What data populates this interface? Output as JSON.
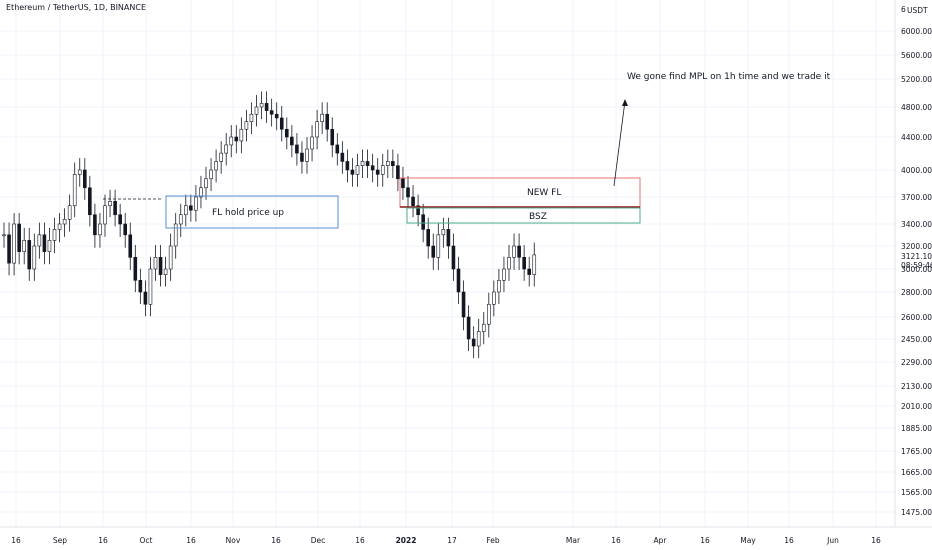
{
  "header": {
    "title": "Ethereum / TetherUS, 1D, BINANCE",
    "currency_badge": "USDT",
    "currency_digit": "6"
  },
  "colors": {
    "candle": "#131722",
    "grid": "#f0f3fa",
    "axis_text": "#131722",
    "red_box": "#e57373",
    "green_box": "#4caf8e",
    "blue_box": "#5b8fd6",
    "dark_line": "#8b1a1a",
    "annotation_text": "#131722"
  },
  "chart_data": {
    "type": "candlestick",
    "symbol": "Ethereum / TetherUS",
    "interval": "1D",
    "exchange": "BINANCE",
    "y_axis": {
      "scale": "log",
      "ticks": [
        1475,
        1565,
        1665,
        1765,
        1885,
        2010,
        2130,
        2290,
        2450,
        2600,
        2800,
        3000,
        3200,
        3400,
        3700,
        4000,
        4400,
        4800,
        5200,
        5600,
        6000
      ],
      "tick_labels": [
        "1475.00",
        "1565.00",
        "1665.00",
        "1765.00",
        "1885.00",
        "2010.00",
        "2130.00",
        "2290.00",
        "2450.00",
        "2600.00",
        "2800.00",
        "3000.00",
        "3200.00",
        "3400.00",
        "3700.00",
        "4000.00",
        "4400.00",
        "4800.00",
        "5200.00",
        "5600.00",
        "6000.00"
      ],
      "last_price_label": "3121.10",
      "countdown_label": "08:59:46"
    },
    "x_axis": {
      "tick_labels": [
        "16",
        "Sep",
        "16",
        "Oct",
        "16",
        "Nov",
        "16",
        "Dec",
        "16",
        "2022",
        "17",
        "Feb",
        "Mar",
        "16",
        "Apr",
        "16",
        "May",
        "16",
        "Jun",
        "16"
      ]
    },
    "price_path": [
      [
        3300,
        3050,
        3400,
        3150,
        3250,
        3000,
        3200,
        3300,
        3150,
        3250,
        3350,
        3400,
        3450,
        3600,
        3950,
        4000,
        3800,
        3500,
        3300,
        3400,
        3600,
        3650,
        3500,
        3400,
        3300,
        3100,
        2900,
        2800,
        2700,
        3000,
        3100,
        2950,
        3000,
        3200,
        3400,
        3500,
        3600,
        3550,
        3700,
        3800,
        3900,
        4000,
        4100,
        4200,
        4300,
        4400,
        4350,
        4500,
        4600,
        4700,
        4800,
        4850,
        4750,
        4700,
        4650,
        4500,
        4400,
        4300,
        4200,
        4100,
        4250,
        4400,
        4600,
        4700,
        4500,
        4300,
        4200,
        4100,
        4000,
        3950,
        4050,
        4100,
        4050,
        4000,
        3950,
        4050,
        4100,
        4050,
        3900,
        3800,
        3700,
        3600,
        3500,
        3350,
        3200,
        3100,
        3300,
        3350,
        3200,
        3000,
        2800,
        2600,
        2450,
        2400,
        2500,
        2550,
        2700,
        2800,
        2900,
        3000,
        3100,
        3200,
        3100,
        3000,
        2950,
        3121.1
      ]
    ],
    "annotations": [
      {
        "text": "We gone find MPL on 1h time and we trade it"
      },
      {
        "text": "NEW FL"
      },
      {
        "text": "BSZ"
      },
      {
        "text": "FL hold price up"
      }
    ]
  }
}
